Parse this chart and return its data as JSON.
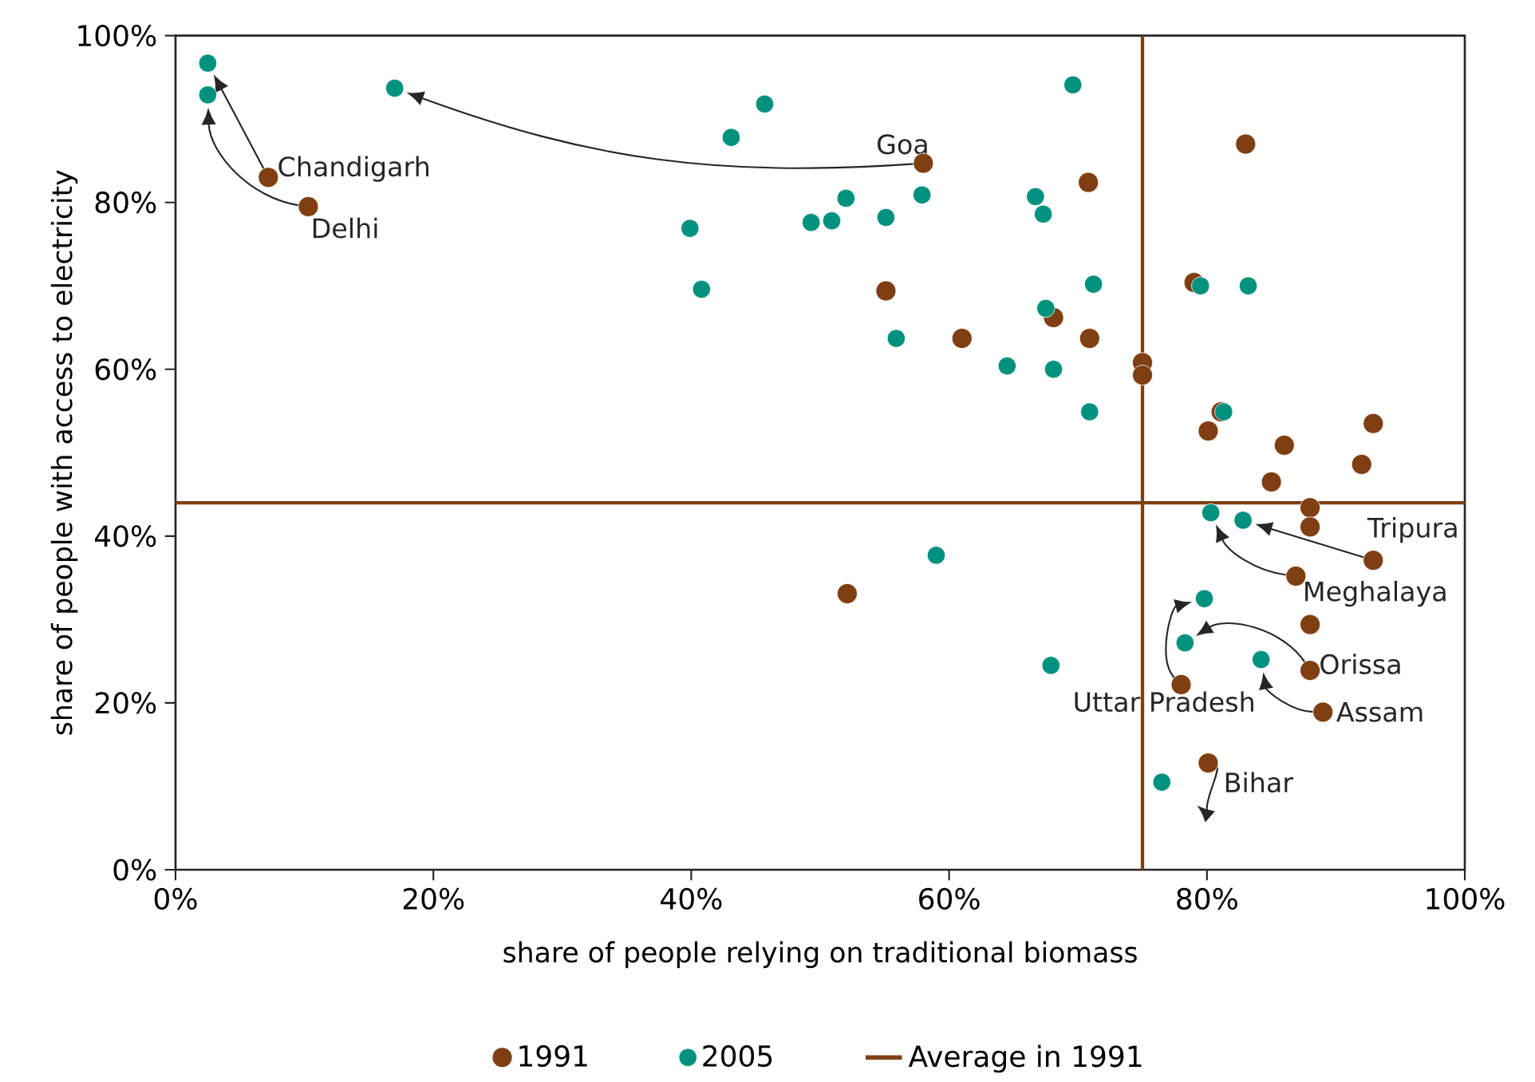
{
  "chart_data": {
    "type": "scatter",
    "xlabel": "share of people relying on traditional biomass",
    "ylabel": "share of people with access to electricity",
    "xlim": [
      0,
      100
    ],
    "ylim": [
      0,
      100
    ],
    "xticks": [
      {
        "value": 0,
        "label": "0%"
      },
      {
        "value": 20,
        "label": "20%"
      },
      {
        "value": 40,
        "label": "40%"
      },
      {
        "value": 60,
        "label": "60%"
      },
      {
        "value": 80,
        "label": "80%"
      },
      {
        "value": 100,
        "label": "100%"
      }
    ],
    "yticks": [
      {
        "value": 0,
        "label": "0%"
      },
      {
        "value": 20,
        "label": "20%"
      },
      {
        "value": 40,
        "label": "40%"
      },
      {
        "value": 60,
        "label": "60%"
      },
      {
        "value": 80,
        "label": "80%"
      },
      {
        "value": 100,
        "label": "100%"
      }
    ],
    "marker": "circle",
    "legend": "bottom",
    "series": [
      {
        "name": "1991",
        "color": "#7f3f12",
        "x": [
          7.2,
          10.3,
          58.0,
          92.9,
          86.9,
          88.0,
          89.0,
          78.0,
          80.1,
          70.8,
          83.0,
          55.1,
          61.0,
          68.1,
          70.9,
          75.0,
          75.0,
          79.0,
          81.1,
          80.1,
          86.0,
          92.9,
          92.0,
          85.0,
          88.0,
          88.0,
          88.0,
          52.1
        ],
        "values": [
          83.0,
          79.5,
          84.7,
          37.1,
          35.2,
          23.9,
          18.9,
          22.2,
          12.8,
          82.4,
          87.0,
          69.4,
          63.7,
          66.2,
          63.7,
          60.8,
          59.3,
          70.4,
          54.9,
          52.6,
          50.9,
          53.5,
          48.6,
          46.5,
          43.4,
          41.1,
          29.4,
          33.1
        ]
      },
      {
        "name": "2005",
        "color": "#00917f",
        "x": [
          2.5,
          2.5,
          17.0,
          39.9,
          40.8,
          43.1,
          45.7,
          49.3,
          50.9,
          52.0,
          55.1,
          57.9,
          55.9,
          64.5,
          66.7,
          67.3,
          69.6,
          67.5,
          68.1,
          71.2,
          70.9,
          79.5,
          83.2,
          81.3,
          80.3,
          82.8,
          79.8,
          78.3,
          84.2,
          59.0,
          67.9,
          76.5
        ],
        "values": [
          96.7,
          92.9,
          93.7,
          76.9,
          69.6,
          87.8,
          91.8,
          77.6,
          77.8,
          80.5,
          78.2,
          80.9,
          63.7,
          60.4,
          80.7,
          78.6,
          94.1,
          67.3,
          60.0,
          70.2,
          54.9,
          70.0,
          70.0,
          54.9,
          42.8,
          41.9,
          32.5,
          27.2,
          25.2,
          37.7,
          24.5,
          10.5
        ]
      }
    ],
    "ref_lines": [
      {
        "axis": "x",
        "value": 75,
        "color": "#7f3f12",
        "label": "Average in 1991"
      },
      {
        "axis": "y",
        "value": 44,
        "color": "#7f3f12"
      }
    ],
    "annotations": [
      {
        "text": "Chandigarh",
        "x": 7.2,
        "y": 83.0
      },
      {
        "text": "Delhi",
        "x": 10.3,
        "y": 79.5
      },
      {
        "text": "Goa",
        "x": 58.0,
        "y": 84.7
      },
      {
        "text": "Tripura",
        "x": 92.9,
        "y": 37.1
      },
      {
        "text": "Meghalaya",
        "x": 86.9,
        "y": 35.2
      },
      {
        "text": "Orissa",
        "x": 88.0,
        "y": 23.9
      },
      {
        "text": "Assam",
        "x": 89.0,
        "y": 18.9
      },
      {
        "text": "Uttar Pradesh",
        "x": 78.0,
        "y": 22.2
      },
      {
        "text": "Bihar",
        "x": 80.1,
        "y": 12.8
      }
    ]
  }
}
